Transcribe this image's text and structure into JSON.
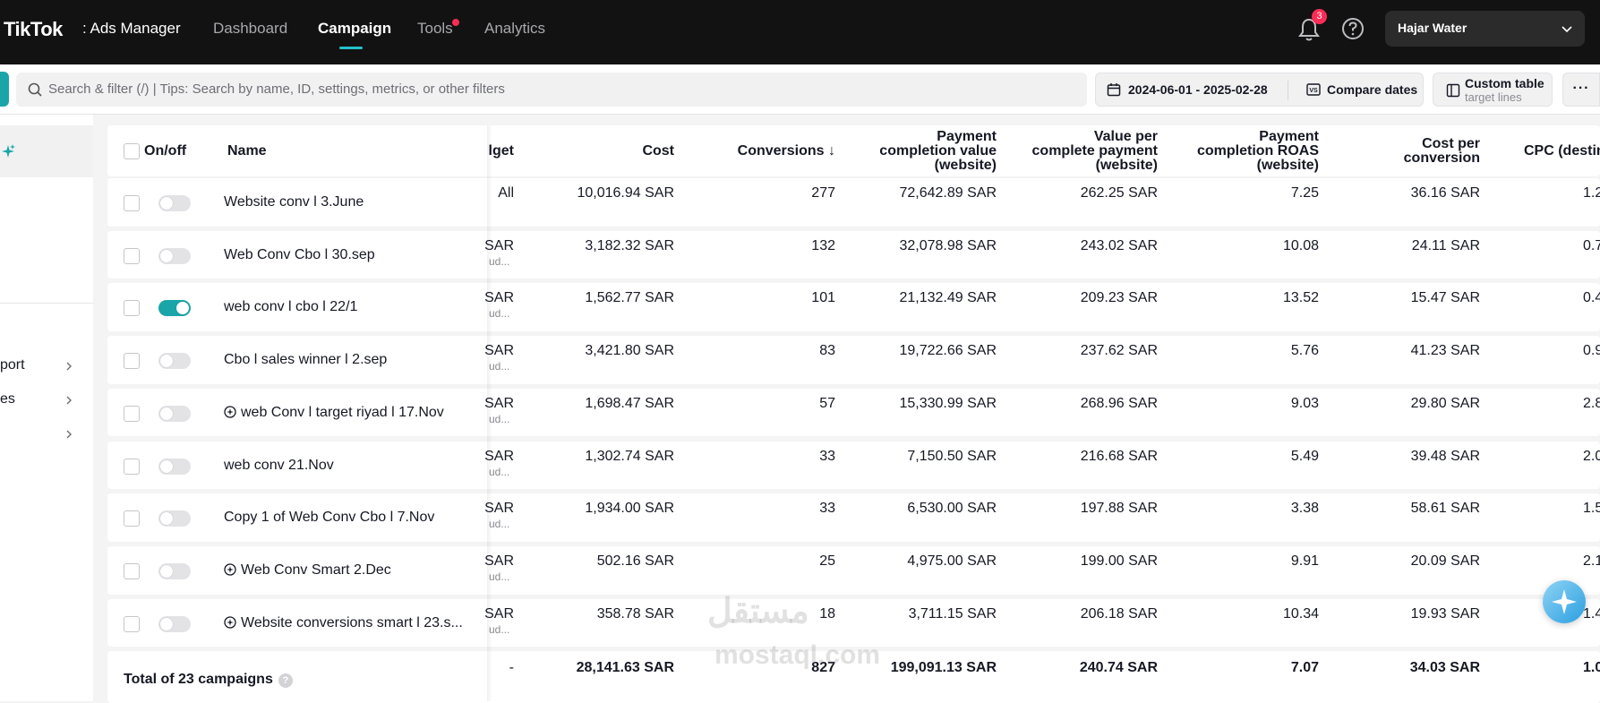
{
  "topbar": {
    "logo": "TikTok",
    "logo_sub": ": Ads Manager",
    "nav": [
      {
        "label": "Dashboard",
        "active": false
      },
      {
        "label": "Campaign",
        "active": true
      },
      {
        "label": "Tools",
        "active": false
      },
      {
        "label": "Analytics",
        "active": false
      }
    ],
    "notification_count": "3",
    "account_name": "Hajar Water"
  },
  "toolbar": {
    "search_placeholder": "Search & filter (/) | Tips: Search by name, ID, settings, metrics, or other filters",
    "date_range": "2024-06-01 - 2025-02-28",
    "compare_label": "Compare dates",
    "custom_table_title": "Custom table",
    "custom_table_sub": "target lines",
    "more_label": "···"
  },
  "sidebar": {
    "items": [
      {
        "label": "port"
      },
      {
        "label": "es"
      },
      {
        "label": ""
      }
    ]
  },
  "table": {
    "headers": {
      "onoff": "On/off",
      "name": "Name",
      "budget": "lget",
      "cost": "Cost",
      "conversions": "Conversions ↓",
      "payment_value": [
        "Payment",
        "completion value",
        "(website)"
      ],
      "value_per": [
        "Value per",
        "complete payment",
        "(website)"
      ],
      "roas": [
        "Payment",
        "completion ROAS",
        "(website)"
      ],
      "cost_per": [
        "Cost per",
        "conversion"
      ],
      "cpc": "CPC (destin"
    },
    "rows": [
      {
        "on": false,
        "smart": false,
        "name": "Website conv l 3.June",
        "budget": "All",
        "budget_sub": "",
        "cost": "10,016.94 SAR",
        "conversions": "277",
        "payment_value": "72,642.89 SAR",
        "value_per": "262.25 SAR",
        "roas": "7.25",
        "cost_per": "36.16 SAR",
        "cpc": "1.2"
      },
      {
        "on": false,
        "smart": false,
        "name": "Web Conv Cbo l 30.sep",
        "budget": "SAR",
        "budget_sub": "ud...",
        "cost": "3,182.32 SAR",
        "conversions": "132",
        "payment_value": "32,078.98 SAR",
        "value_per": "243.02 SAR",
        "roas": "10.08",
        "cost_per": "24.11 SAR",
        "cpc": "0.7"
      },
      {
        "on": true,
        "smart": false,
        "name": "web conv l cbo l 22/1",
        "budget": "SAR",
        "budget_sub": "ud...",
        "cost": "1,562.77 SAR",
        "conversions": "101",
        "payment_value": "21,132.49 SAR",
        "value_per": "209.23 SAR",
        "roas": "13.52",
        "cost_per": "15.47 SAR",
        "cpc": "0.4"
      },
      {
        "on": false,
        "smart": false,
        "name": "Cbo l sales winner l 2.sep",
        "budget": "SAR",
        "budget_sub": "ud...",
        "cost": "3,421.80 SAR",
        "conversions": "83",
        "payment_value": "19,722.66 SAR",
        "value_per": "237.62 SAR",
        "roas": "5.76",
        "cost_per": "41.23 SAR",
        "cpc": "0.9"
      },
      {
        "on": false,
        "smart": true,
        "name": "web Conv l target riyad l 17.Nov",
        "budget": "SAR",
        "budget_sub": "ud...",
        "cost": "1,698.47 SAR",
        "conversions": "57",
        "payment_value": "15,330.99 SAR",
        "value_per": "268.96 SAR",
        "roas": "9.03",
        "cost_per": "29.80 SAR",
        "cpc": "2.8"
      },
      {
        "on": false,
        "smart": false,
        "name": "web conv 21.Nov",
        "budget": "SAR",
        "budget_sub": "ud...",
        "cost": "1,302.74 SAR",
        "conversions": "33",
        "payment_value": "7,150.50 SAR",
        "value_per": "216.68 SAR",
        "roas": "5.49",
        "cost_per": "39.48 SAR",
        "cpc": "2.0"
      },
      {
        "on": false,
        "smart": false,
        "name": "Copy 1 of Web Conv Cbo l 7.Nov",
        "budget": "SAR",
        "budget_sub": "ud...",
        "cost": "1,934.00 SAR",
        "conversions": "33",
        "payment_value": "6,530.00 SAR",
        "value_per": "197.88 SAR",
        "roas": "3.38",
        "cost_per": "58.61 SAR",
        "cpc": "1.5"
      },
      {
        "on": false,
        "smart": true,
        "name": "Web Conv Smart 2.Dec",
        "budget": "SAR",
        "budget_sub": "ud...",
        "cost": "502.16 SAR",
        "conversions": "25",
        "payment_value": "4,975.00 SAR",
        "value_per": "199.00 SAR",
        "roas": "9.91",
        "cost_per": "20.09 SAR",
        "cpc": "2.1"
      },
      {
        "on": false,
        "smart": true,
        "name": "Website conversions smart l 23.s...",
        "budget": "SAR",
        "budget_sub": "ud...",
        "cost": "358.78 SAR",
        "conversions": "18",
        "payment_value": "3,711.15 SAR",
        "value_per": "206.18 SAR",
        "roas": "10.34",
        "cost_per": "19.93 SAR",
        "cpc": "1.4"
      }
    ],
    "total": {
      "label": "Total of 23 campaigns",
      "budget": "-",
      "cost": "28,141.63 SAR",
      "conversions": "827",
      "payment_value": "199,091.13 SAR",
      "value_per": "240.74 SAR",
      "roas": "7.07",
      "cost_per": "34.03 SAR",
      "cpc": "1.0"
    }
  },
  "watermark": {
    "arabic": "مستقل",
    "latin": "mostaql.com"
  },
  "colors": {
    "accent": "#1aa5a8",
    "badge": "#fe2c55",
    "topbar": "#121212"
  }
}
